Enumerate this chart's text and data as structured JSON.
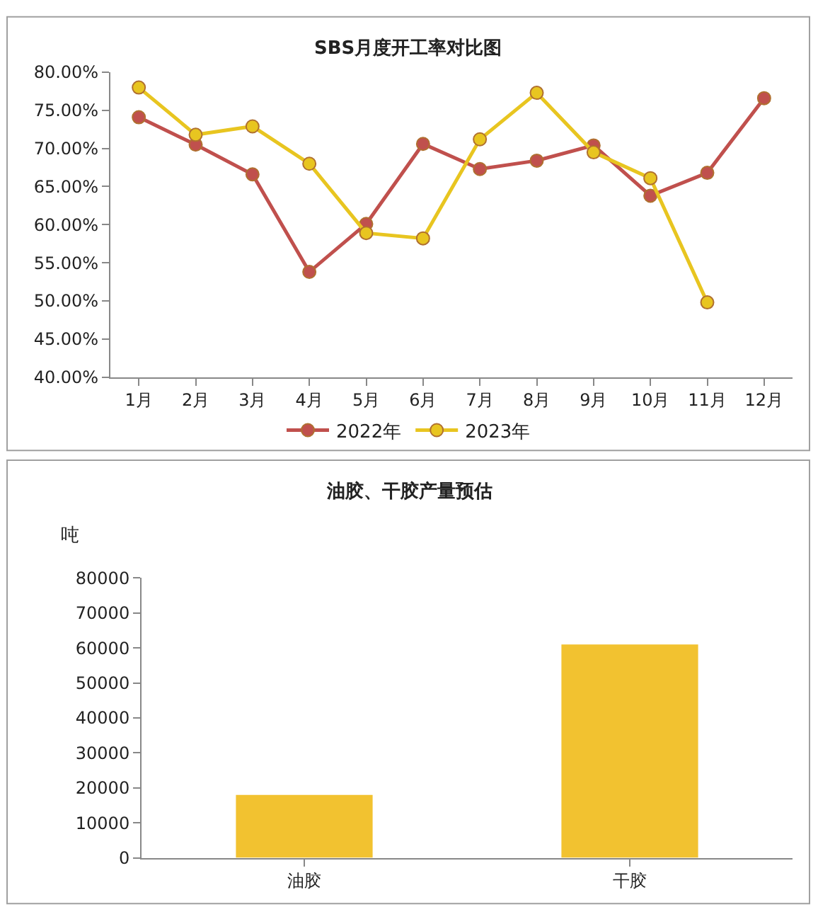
{
  "chart_data": [
    {
      "type": "line",
      "title": "SBS月度开工率对比图",
      "categories": [
        "1月",
        "2月",
        "3月",
        "4月",
        "5月",
        "6月",
        "7月",
        "8月",
        "9月",
        "10月",
        "11月",
        "12月"
      ],
      "series": [
        {
          "name": "2022年",
          "color": "#c0504d",
          "values": [
            74.1,
            70.5,
            66.6,
            53.8,
            60.1,
            70.6,
            67.3,
            68.4,
            70.4,
            63.8,
            66.8,
            76.6
          ]
        },
        {
          "name": "2023年",
          "color": "#e8c520",
          "values": [
            78.0,
            71.8,
            72.9,
            68.0,
            58.9,
            58.2,
            71.2,
            77.3,
            69.5,
            66.1,
            49.8,
            null
          ]
        }
      ],
      "ylim": [
        40,
        80
      ],
      "yticks": [
        {
          "value": 40,
          "label": "40.00%"
        },
        {
          "value": 45,
          "label": "45.00%"
        },
        {
          "value": 50,
          "label": "50.00%"
        },
        {
          "value": 55,
          "label": "55.00%"
        },
        {
          "value": 60,
          "label": "60.00%"
        },
        {
          "value": 65,
          "label": "65.00%"
        },
        {
          "value": 70,
          "label": "70.00%"
        },
        {
          "value": 75,
          "label": "75.00%"
        },
        {
          "value": 80,
          "label": "80.00%"
        }
      ],
      "marker": "circle",
      "line_style": "solid",
      "grid": false,
      "legend": "bottom"
    },
    {
      "type": "bar",
      "title": "油胶、干胶产量预估",
      "ylabel": "吨",
      "categories": [
        "油胶",
        "干胶"
      ],
      "values": [
        18000,
        61000
      ],
      "color": "#f2c230",
      "ylim": [
        0,
        80000
      ],
      "yticks": [
        0,
        10000,
        20000,
        30000,
        40000,
        50000,
        60000,
        70000,
        80000
      ],
      "grid": false
    }
  ]
}
